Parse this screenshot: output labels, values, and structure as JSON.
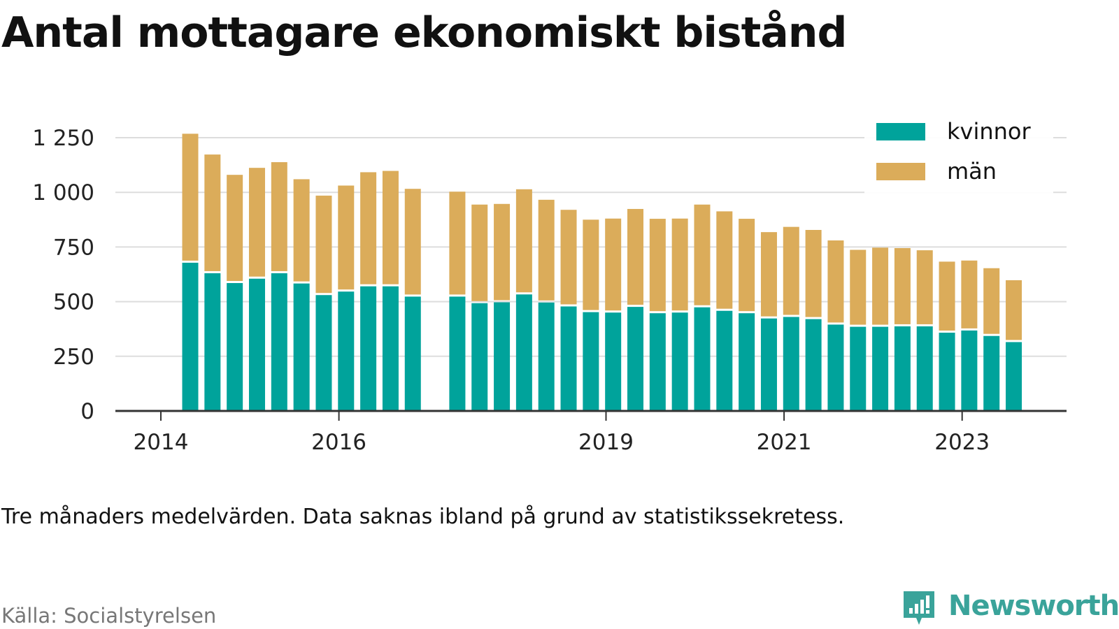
{
  "title": "Antal mottagare ekonomiskt bistånd",
  "note": "Tre månaders medelvärden. Data saknas ibland på grund av statistikssekretess.",
  "source": "Källa: Socialstyrelsen",
  "brand": "Newsworthy",
  "colors": {
    "kvinnor": "#00a39b",
    "man": "#dbac5a",
    "grid": "#dddddd",
    "axis": "#333333",
    "brand": "#3aa39a"
  },
  "chart_data": {
    "type": "bar",
    "stacked": true,
    "x_tick_labels": [
      "2014",
      "2016",
      "2019",
      "2021",
      "2023"
    ],
    "y_tick_labels": [
      "0",
      "250",
      "500",
      "750",
      "1 000",
      "1 250"
    ],
    "y_ticks": [
      0,
      250,
      500,
      750,
      1000,
      1250
    ],
    "ylim": [
      0,
      1250
    ],
    "grid": true,
    "legend_position": "top-right",
    "series": [
      {
        "name": "kvinnor",
        "values": [
          678,
          630,
          585,
          605,
          630,
          583,
          530,
          546,
          570,
          570,
          523,
          null,
          523,
          493,
          497,
          533,
          496,
          478,
          452,
          450,
          476,
          447,
          450,
          474,
          458,
          447,
          423,
          430,
          420,
          395,
          385,
          385,
          387,
          387,
          358,
          368,
          343,
          315
        ]
      },
      {
        "name": "män",
        "values": [
          590,
          543,
          495,
          507,
          508,
          477,
          455,
          485,
          522,
          528,
          493,
          null,
          480,
          451,
          450,
          481,
          470,
          442,
          423,
          430,
          448,
          432,
          430,
          470,
          455,
          432,
          395,
          412,
          408,
          385,
          352,
          362,
          358,
          348,
          325,
          320,
          310,
          283
        ]
      }
    ],
    "bar_dates": [
      2014.33,
      2014.58,
      2014.83,
      2015.08,
      2015.33,
      2015.58,
      2015.83,
      2016.08,
      2016.33,
      2016.58,
      2016.83,
      null,
      2017.33,
      2017.58,
      2017.83,
      2018.08,
      2018.33,
      2018.58,
      2018.83,
      2019.08,
      2019.33,
      2019.58,
      2019.83,
      2020.08,
      2020.33,
      2020.58,
      2020.83,
      2021.08,
      2021.33,
      2021.58,
      2021.83,
      2022.08,
      2022.33,
      2022.58,
      2022.83,
      2023.08,
      2023.33,
      2023.58
    ]
  }
}
